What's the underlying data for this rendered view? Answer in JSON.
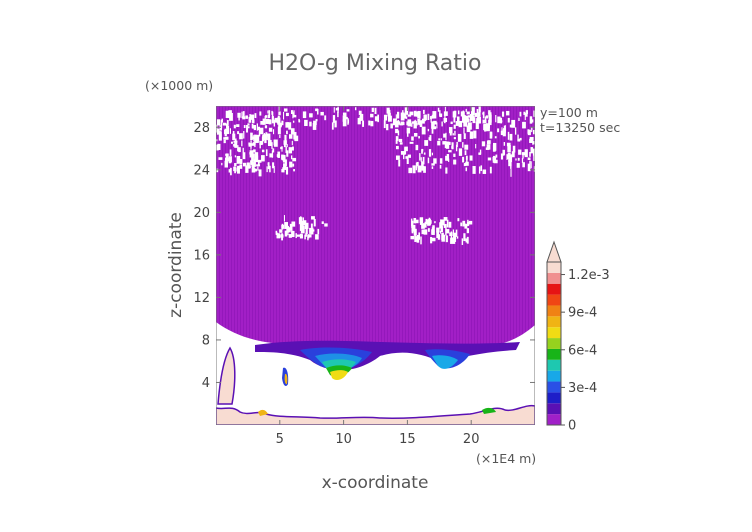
{
  "chart_data": {
    "type": "heatmap",
    "title": "H2O-g Mixing Ratio",
    "xlabel": "x-coordinate",
    "ylabel": "z-coordinate",
    "x_units": "(×1E4 m)",
    "y_units": "(×1000 m)",
    "annotations": [
      "y=100 m",
      "t=13250 sec"
    ],
    "xlim": [
      0,
      25
    ],
    "ylim": [
      0,
      30
    ],
    "x_ticks": [
      5,
      10,
      15,
      20
    ],
    "x_tick_labels": [
      "5",
      "10",
      "15",
      "20"
    ],
    "y_ticks": [
      4,
      8,
      12,
      16,
      20,
      24,
      28
    ],
    "y_tick_labels": [
      "4",
      "8",
      "12",
      "16",
      "20",
      "24",
      "28"
    ],
    "colorbar": {
      "min": 0,
      "max": 0.0013,
      "tick_values": [
        0,
        0.0003,
        0.0006,
        0.0009,
        0.0012
      ],
      "tick_labels": [
        "0",
        "3e-4",
        "6e-4",
        "9e-4",
        "1.2e-3"
      ],
      "colors": [
        "#a020c8",
        "#5a10b4",
        "#1e1ec8",
        "#2a50e6",
        "#18a8e8",
        "#1ec8b0",
        "#18b418",
        "#96d21e",
        "#f0dc14",
        "#f0b414",
        "#f08214",
        "#f04614",
        "#e61414",
        "#f09090",
        "#f8dcd2"
      ]
    },
    "fields": {
      "upper_layer_value": 3e-05,
      "boundary_layer_top_range": [
        6.5,
        8
      ],
      "surface_moist_layer_depth": 1
    }
  }
}
